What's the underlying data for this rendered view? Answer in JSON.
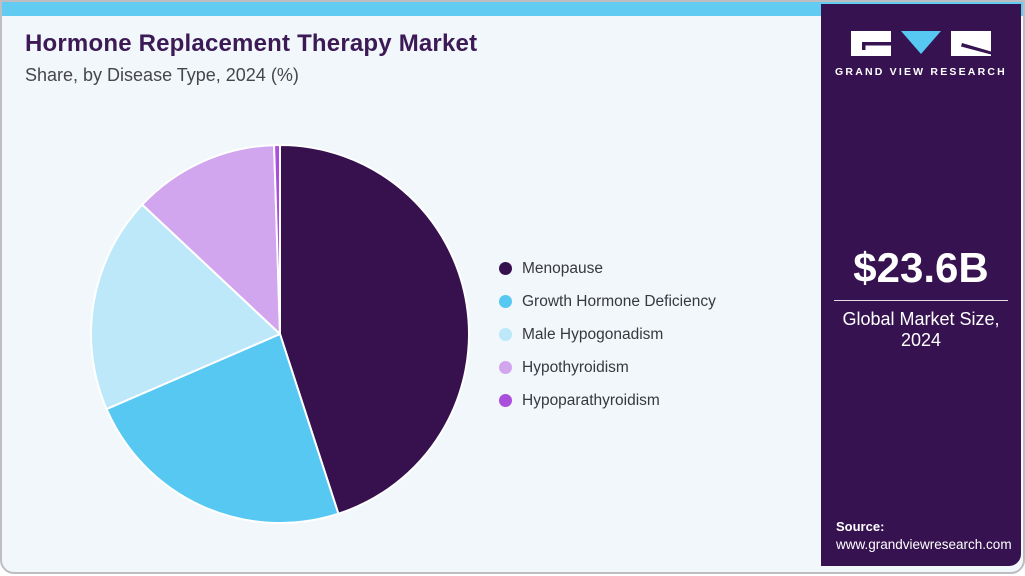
{
  "header": {
    "title": "Hormone Replacement Therapy Market",
    "subtitle": "Share, by Disease Type, 2024 (%)"
  },
  "chart_data": {
    "type": "pie",
    "title": "Hormone Replacement Therapy Market Share, by Disease Type, 2024 (%)",
    "unit": "%",
    "start_angle_deg": 0,
    "direction": "clockwise",
    "legend_position": "right",
    "slices": [
      {
        "label": "Menopause",
        "value": 45.0,
        "color": "#36114e"
      },
      {
        "label": "Growth Hormone Deficiency",
        "value": 23.5,
        "color": "#56c8f2"
      },
      {
        "label": "Male Hypogonadism",
        "value": 18.5,
        "color": "#bce8fa"
      },
      {
        "label": "Hypothyroidism",
        "value": 12.5,
        "color": "#d2a6ee"
      },
      {
        "label": "Hypoparathyroidism",
        "value": 0.5,
        "color": "#a94fdb"
      }
    ]
  },
  "sidebar": {
    "logo_text": "GRAND VIEW RESEARCH",
    "market_size": "$23.6B",
    "market_size_caption": "Global Market Size, 2024",
    "source_label": "Source:",
    "source_url": "www.grandviewresearch.com"
  },
  "theme": {
    "topbar_color": "#62cbf2",
    "card_background": "#f1f7fa",
    "border_color": "#bdbdc2",
    "sidebar_background": "#361350",
    "title_color": "#3c1a56",
    "logo_accent": "#56c8f2"
  }
}
